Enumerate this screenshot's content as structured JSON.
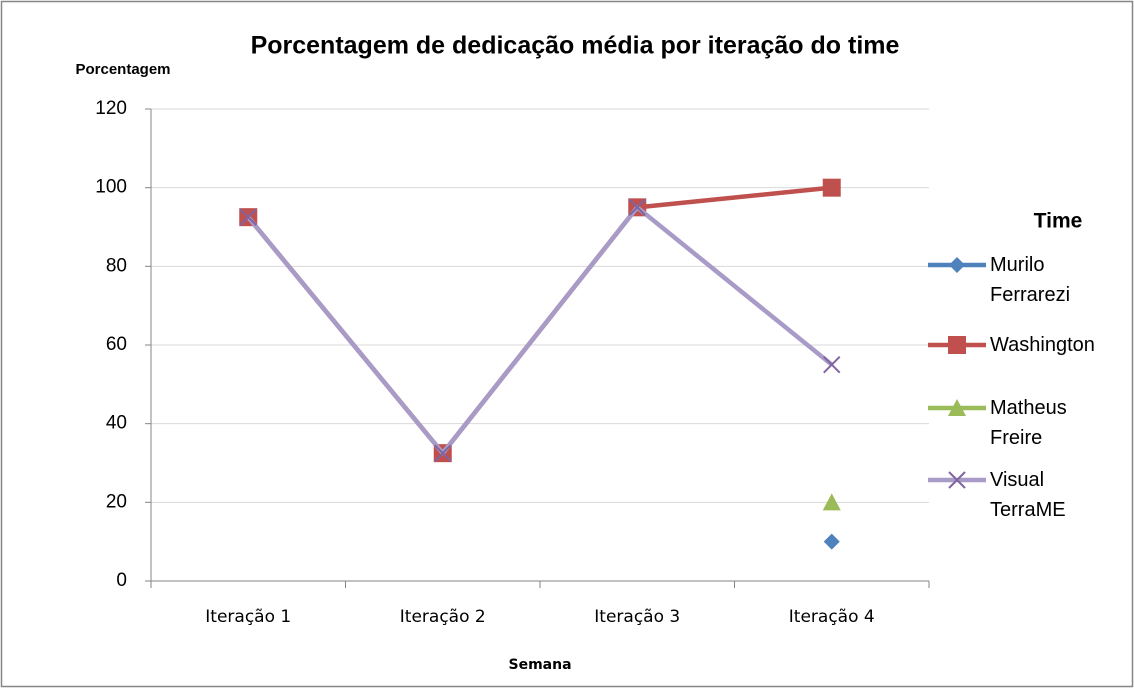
{
  "chart_data": {
    "type": "line",
    "title": "Porcentagem de dedicação média por iteração do time",
    "y_label": "Porcentagem",
    "x_label": "Semana",
    "legend_title": "Time",
    "legend": "right",
    "grid": true,
    "categories": [
      "Iteração 1",
      "Iteração 2",
      "Iteração 3",
      "Iteração 4"
    ],
    "ylim": [
      0,
      120
    ],
    "yticks": [
      0,
      20,
      40,
      60,
      80,
      100,
      120
    ],
    "series": [
      {
        "name": "Murilo Ferrarezi",
        "color": "#4f81bd",
        "marker": "diamond",
        "values": [
          null,
          null,
          null,
          10
        ]
      },
      {
        "name": "Washington",
        "color": "#c0504d",
        "marker": "square",
        "values": [
          92.5,
          32.5,
          95,
          100
        ]
      },
      {
        "name": "Matheus Freire",
        "color": "#9bbb59",
        "marker": "triangle",
        "values": [
          null,
          null,
          null,
          20
        ]
      },
      {
        "name": "Visual TerraME",
        "color": "#a99bc8",
        "marker": "x",
        "values": [
          92.5,
          32.5,
          95,
          55
        ]
      }
    ]
  }
}
